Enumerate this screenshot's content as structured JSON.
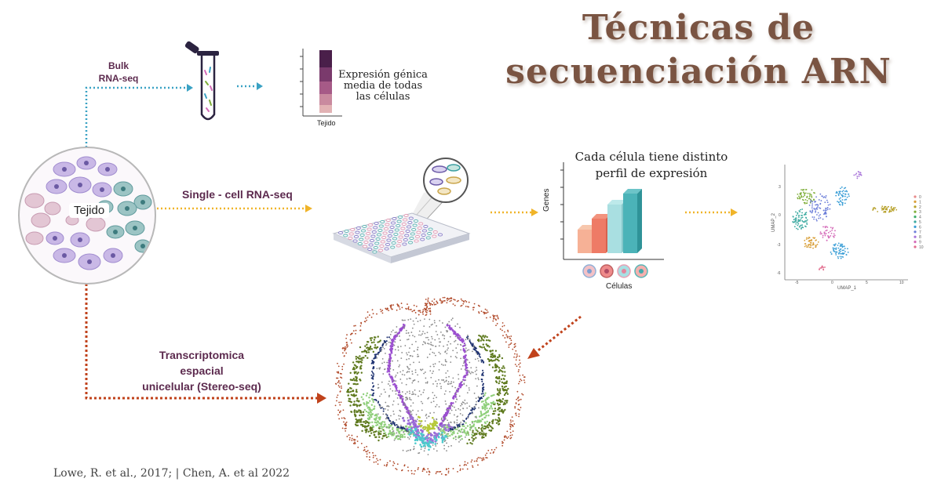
{
  "title": {
    "line1": "Técnicas de",
    "line2": "secuenciación ARN"
  },
  "tissue": {
    "label": "Tejido"
  },
  "bulk": {
    "method": "Bulk\nRNA-seq",
    "result": "Expresión génica\nmedia de todas\nlas células",
    "axis_label": "Tejido"
  },
  "single_cell": {
    "method": "Single - cell RNA-seq",
    "result": "Cada célula tiene distinto\nperfil de expresión",
    "y_label": "Genes",
    "x_label": "Células"
  },
  "umap": {
    "x_label": "UMAP_1",
    "y_label": "UMAP_2",
    "x_ticks": [
      "-5",
      "0",
      "5",
      "10"
    ],
    "y_ticks": [
      "3",
      "0",
      "-3",
      "-6"
    ],
    "legend": [
      "0",
      "1",
      "2",
      "3",
      "4",
      "5",
      "6",
      "7",
      "8",
      "9",
      "10"
    ],
    "legend_colors": [
      "#e88a8a",
      "#d9a03a",
      "#b7a12a",
      "#7fae3a",
      "#3fae6a",
      "#3aa9a0",
      "#3a9ed6",
      "#6d7fd9",
      "#a874d9",
      "#d46bb8",
      "#e26d8e"
    ]
  },
  "spatial": {
    "method": "Transcriptomica\nespacial\nunicelular (Stereo-seq)"
  },
  "citation": "Lowe, R. et al., 2017;  | Chen, A. et al 2022",
  "colors": {
    "bulk": "#3aa2c4",
    "single_cell": "#f0b429",
    "spatial": "#c0421b",
    "title": "#7a5442",
    "label": "#5c2a4e"
  }
}
